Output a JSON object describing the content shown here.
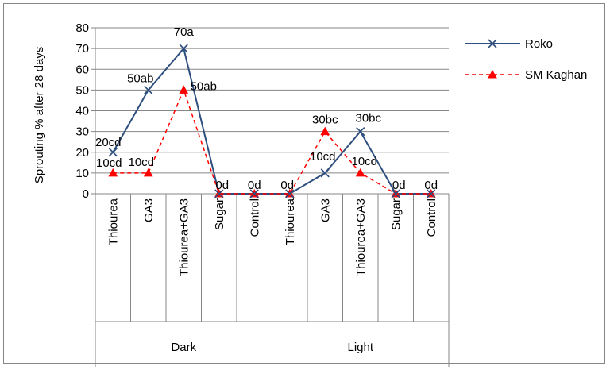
{
  "chart_data": {
    "type": "line",
    "ylabel": "Sprouting % after 28 days",
    "ylim": [
      0,
      80
    ],
    "yticks": [
      "0",
      "10",
      "20",
      "30",
      "40",
      "50",
      "60",
      "70",
      "80"
    ],
    "categories": [
      "Thiourea",
      "GA3",
      "Thiourea+GA3",
      "Sugar",
      "Control",
      "Thiourea",
      "GA3",
      "Thiourea+GA3",
      "Sugar",
      "Control"
    ],
    "groups": [
      "Dark",
      "Light"
    ],
    "grid": "horizontal",
    "legend_position": "right",
    "series": [
      {
        "name": "Roko",
        "color": "#2e4f7e",
        "line_style": "solid",
        "marker": "x",
        "values": [
          20,
          50,
          70,
          0,
          0,
          0,
          10,
          30,
          0,
          0
        ],
        "labels": [
          "20cd",
          "50ab",
          "70a",
          "0d",
          "0d",
          "0d",
          "10cd",
          "30bc",
          "0d",
          "0d"
        ]
      },
      {
        "name": "SM Kaghan",
        "color": "#ff0000",
        "line_style": "dashed",
        "marker": "triangle",
        "values": [
          10,
          10,
          50,
          0,
          0,
          0,
          30,
          10,
          0,
          0
        ],
        "labels": [
          "10cd",
          "10cd",
          "50ab",
          "",
          "",
          "",
          "30bc",
          "10cd",
          "",
          ""
        ]
      }
    ]
  }
}
